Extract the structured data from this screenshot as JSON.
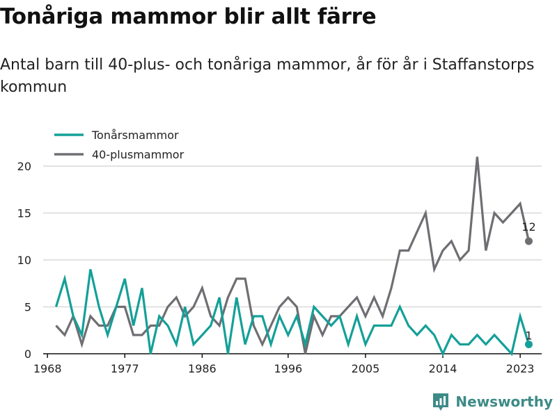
{
  "title": "Tonåriga mammor blir allt färre",
  "subtitle": "Antal barn till 40-plus- och tonåriga mammor, år för år i Staffanstorps kommun",
  "brand": "Newsworthy",
  "colors": {
    "teal": "#14a098",
    "gray": "#6e6e73",
    "grid": "#d9d9d9",
    "logo": "#3d8b87"
  },
  "chart_data": {
    "type": "line",
    "x": [
      1969,
      1970,
      1971,
      1972,
      1973,
      1974,
      1975,
      1976,
      1977,
      1978,
      1979,
      1980,
      1981,
      1982,
      1983,
      1984,
      1985,
      1986,
      1987,
      1988,
      1989,
      1990,
      1991,
      1992,
      1993,
      1994,
      1995,
      1996,
      1997,
      1998,
      1999,
      2000,
      2001,
      2002,
      2003,
      2004,
      2005,
      2006,
      2007,
      2008,
      2009,
      2010,
      2011,
      2012,
      2013,
      2014,
      2015,
      2016,
      2017,
      2018,
      2019,
      2020,
      2021,
      2022,
      2023,
      2024
    ],
    "series": [
      {
        "name": "Tonårsmammor",
        "color": "#14a098",
        "values": [
          5,
          8,
          4,
          2,
          9,
          5,
          2,
          5,
          8,
          3,
          7,
          0,
          4,
          3,
          1,
          5,
          1,
          2,
          3,
          6,
          0,
          6,
          1,
          4,
          4,
          1,
          4,
          2,
          4,
          1,
          5,
          4,
          3,
          4,
          1,
          4,
          1,
          3,
          3,
          3,
          5,
          3,
          2,
          3,
          2,
          0,
          2,
          1,
          1,
          2,
          1,
          2,
          1,
          0,
          4,
          1
        ]
      },
      {
        "name": "40-plusmammor",
        "color": "#6e6e73",
        "values": [
          3,
          2,
          4,
          1,
          4,
          3,
          3,
          5,
          5,
          2,
          2,
          3,
          3,
          5,
          6,
          4,
          5,
          7,
          4,
          3,
          6,
          8,
          8,
          3,
          1,
          3,
          5,
          6,
          5,
          0,
          4,
          2,
          4,
          4,
          5,
          6,
          4,
          6,
          4,
          7,
          11,
          11,
          13,
          15,
          9,
          11,
          12,
          10,
          11,
          21,
          11,
          15,
          14,
          15,
          16,
          12
        ]
      }
    ],
    "xticks": [
      "1968",
      "1977",
      "1986",
      "1996",
      "2005",
      "2014",
      "2023"
    ],
    "xtick_values": [
      1968,
      1977,
      1986,
      1996,
      2005,
      2014,
      2023
    ],
    "yticks": [
      "0",
      "5",
      "10",
      "15",
      "20"
    ],
    "ytick_values": [
      0,
      5,
      10,
      15,
      20
    ],
    "xlim": [
      1967.5,
      2025.5
    ],
    "ylim": [
      0,
      22
    ],
    "end_labels": {
      "gray": "12",
      "teal": "1"
    },
    "legend": "top-left",
    "grid": "horizontal"
  }
}
